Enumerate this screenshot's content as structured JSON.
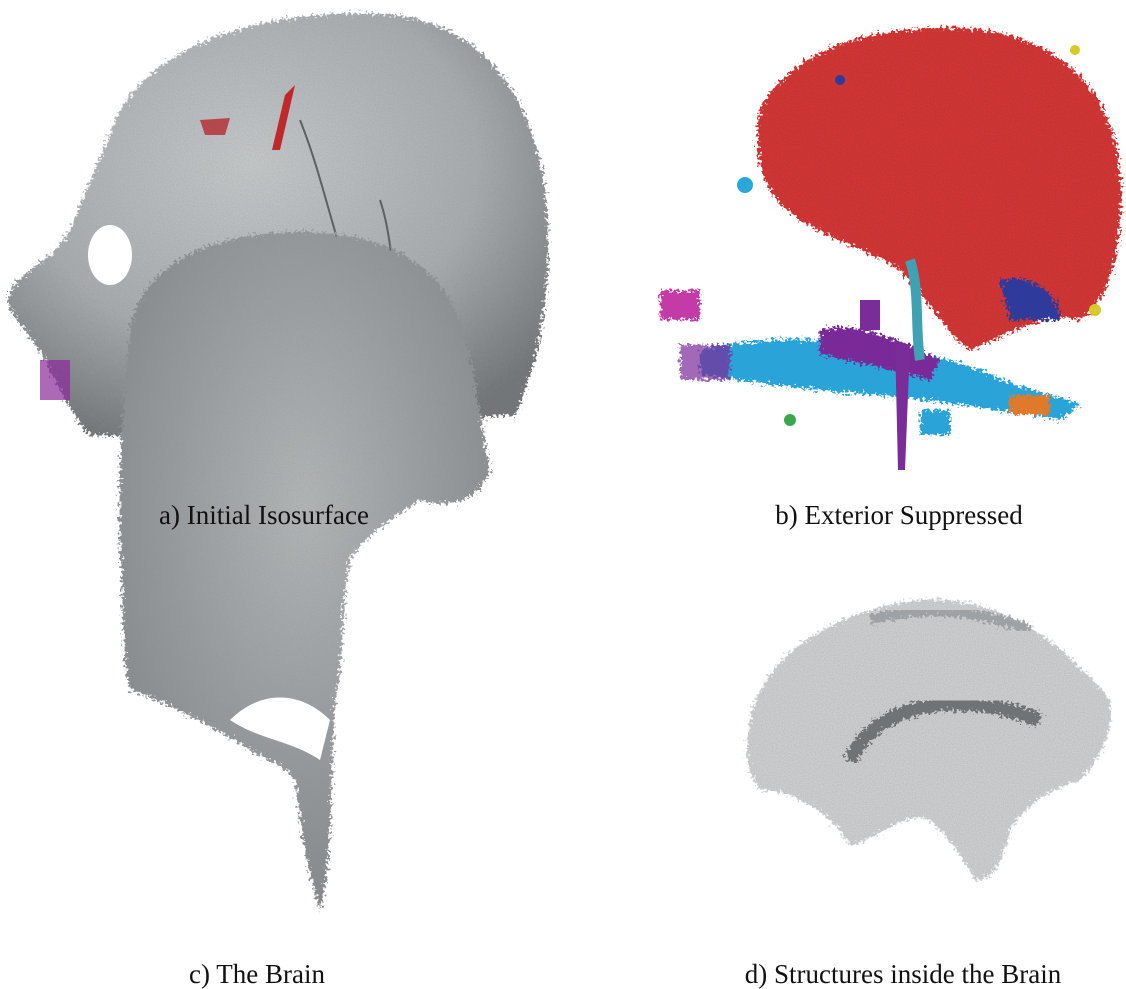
{
  "figure": {
    "panels": [
      {
        "caption": "a) Initial Isosurface"
      },
      {
        "caption": "b) Exterior Suppressed"
      },
      {
        "caption": "c) The Brain"
      },
      {
        "caption": "d) Structures inside the Brain"
      }
    ]
  }
}
